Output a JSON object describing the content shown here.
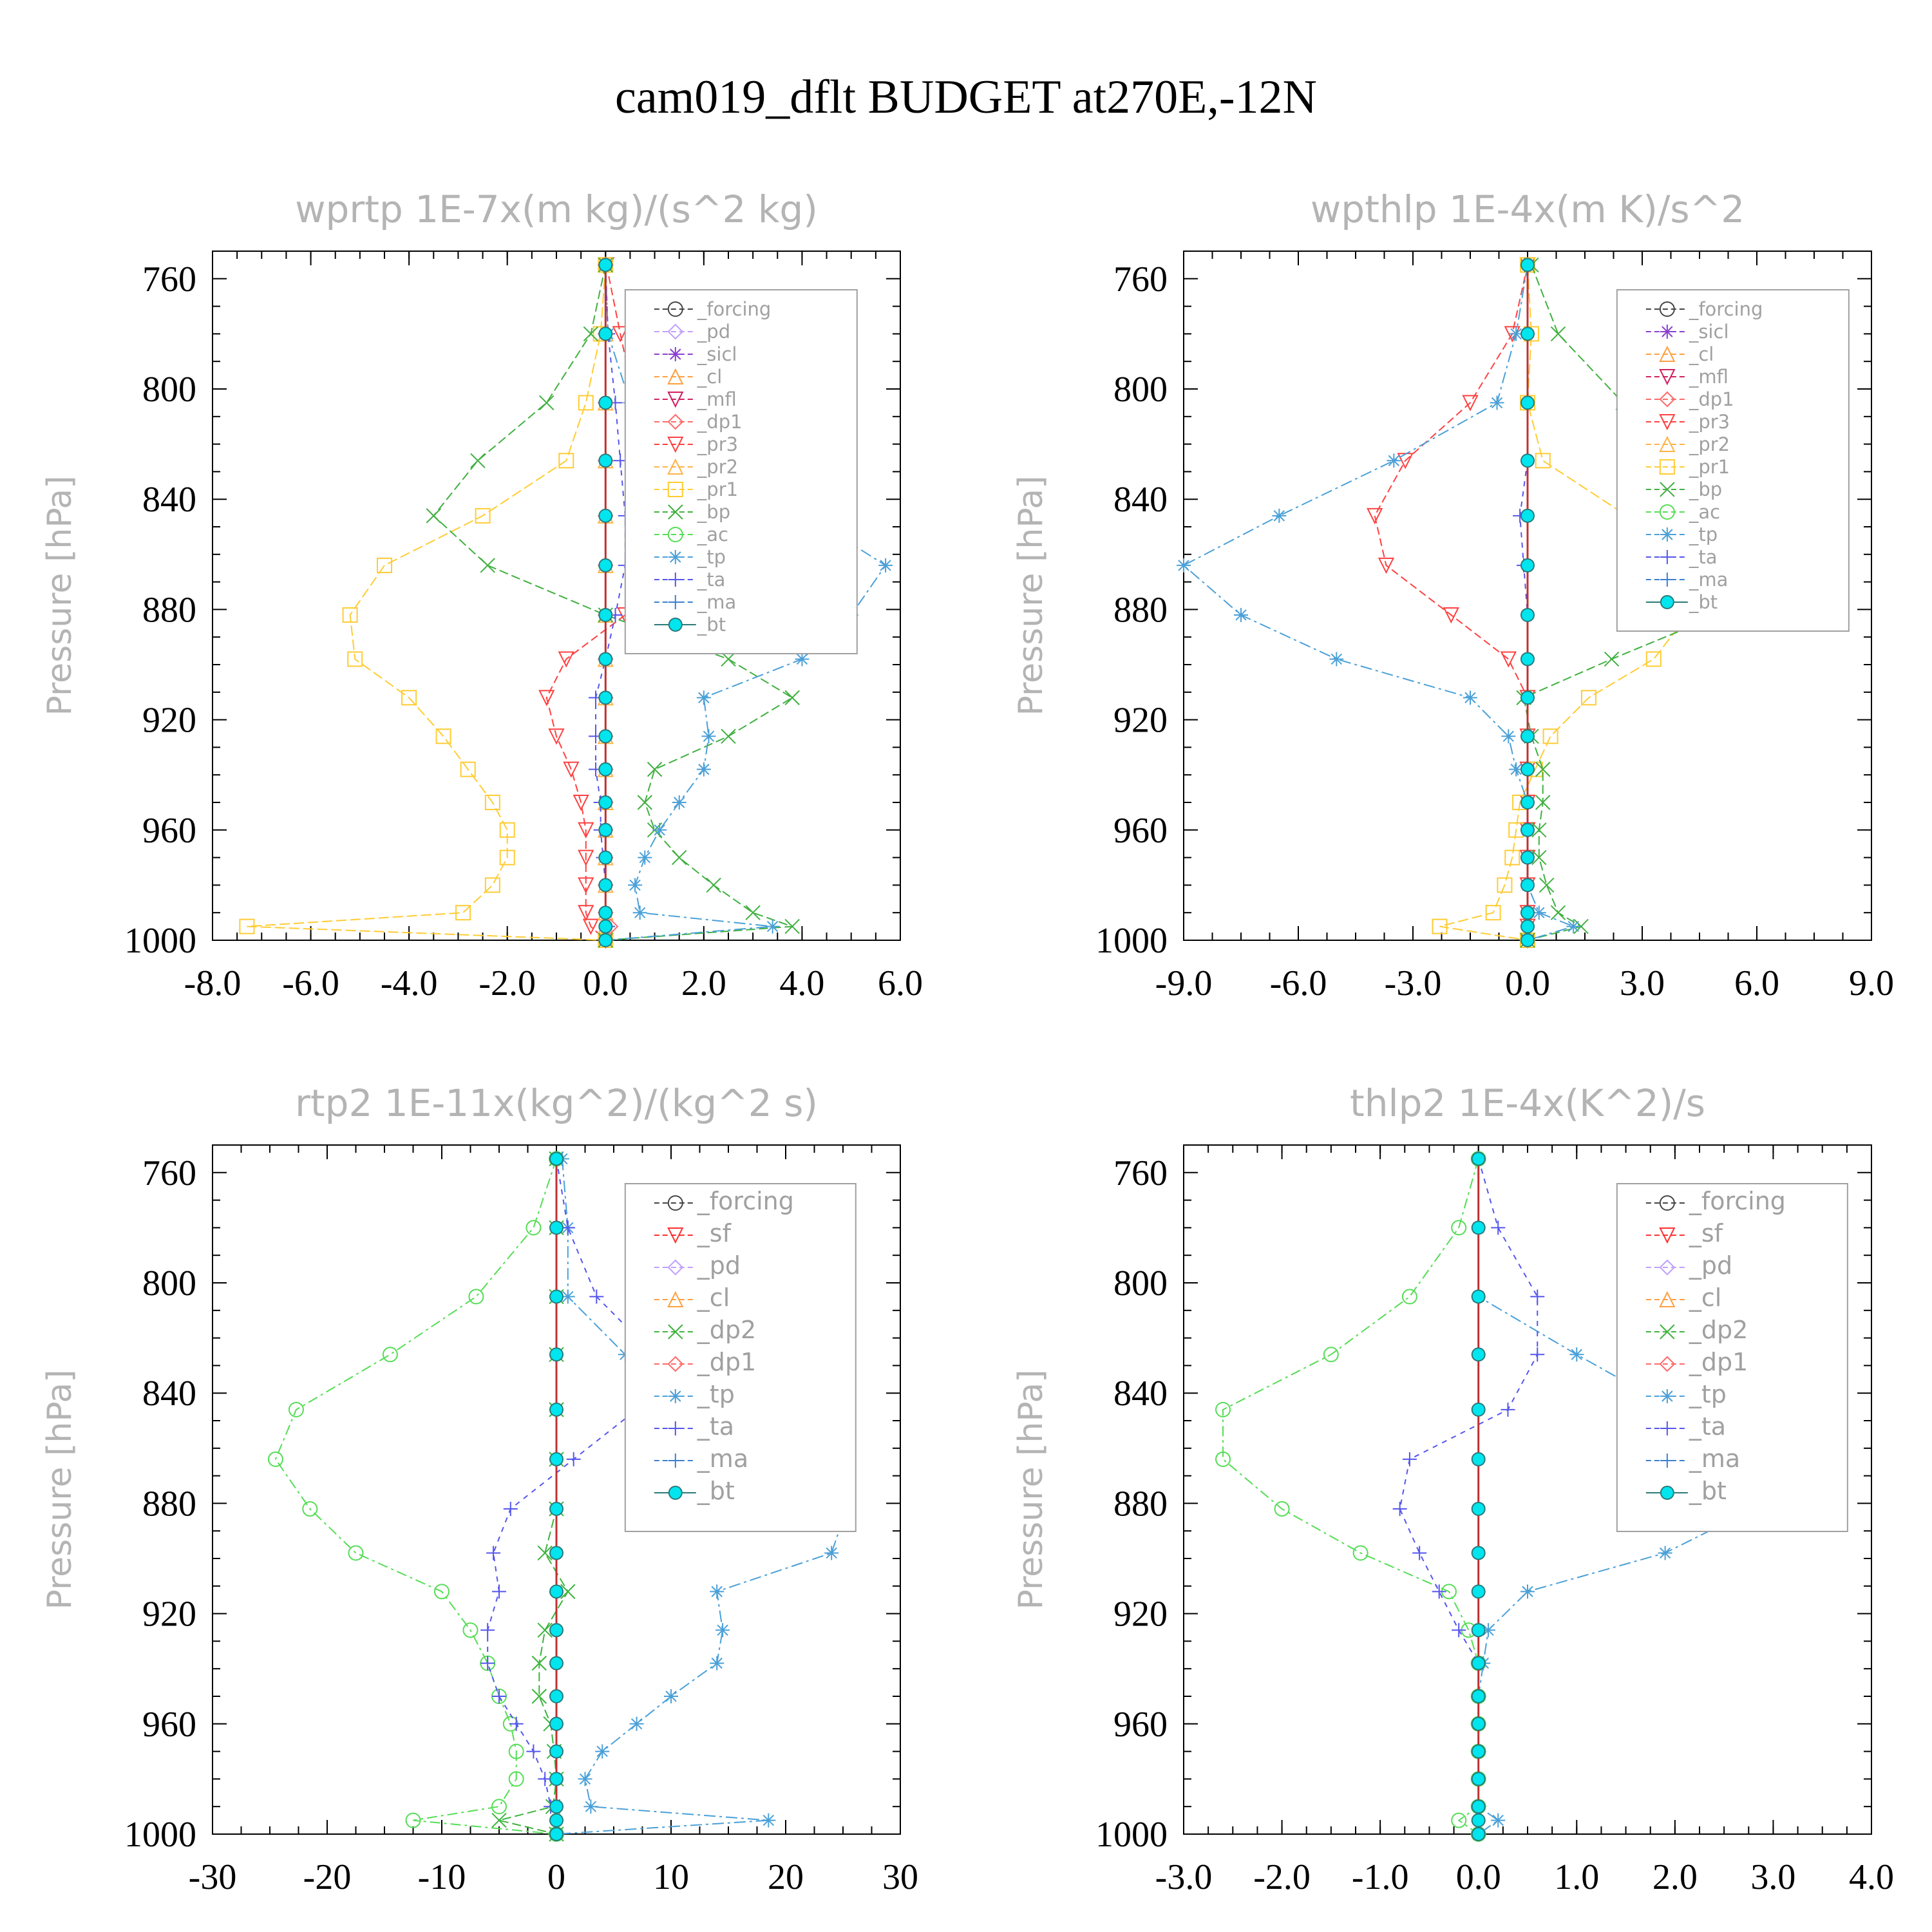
{
  "title": "cam019_dflt  BUDGET at270E,-12N",
  "colors": {
    "forcing": "#444444",
    "pd": "#c0a0ff",
    "sicl": "#8a3fd0",
    "cl": "#ff9f40",
    "mfl": "#d02060",
    "dp1": "#ff6a6a",
    "dp2": "#3cb43c",
    "pr3": "#ff4040",
    "pr2": "#ffb347",
    "pr1": "#ffcc33",
    "bp": "#40b040",
    "ac": "#55dd55",
    "tp": "#4aa0d8",
    "ta": "#5555ee",
    "ma": "#3a80d0",
    "bt": "#00e5ee",
    "sf": "#ff3030"
  },
  "chart_data": [
    {
      "type": "line",
      "title": "wprtp  1E-7x(m kg)/(s^2 kg)",
      "ylabel": "Pressure [hPa]",
      "ylim": [
        1000,
        750
      ],
      "xlim": [
        -8,
        6
      ],
      "xticks": [
        "-8.0",
        "-6.0",
        "-4.0",
        "-2.0",
        "0.0",
        "2.0",
        "4.0",
        "6.0"
      ],
      "xtick_values": [
        -8,
        -6,
        -4,
        -2,
        0,
        2,
        4,
        6
      ],
      "yticks": [
        "760",
        "800",
        "840",
        "880",
        "920",
        "960",
        "1000"
      ],
      "ytick_values": [
        760,
        800,
        840,
        880,
        920,
        960,
        1000
      ],
      "pressure": [
        755,
        780,
        805,
        826,
        846,
        864,
        882,
        898,
        912,
        926,
        938,
        950,
        960,
        970,
        980,
        990,
        995,
        1000
      ],
      "legend": [
        "_forcing",
        "_pd",
        "_sicl",
        "_cl",
        "_mfl",
        "_dp1",
        "_pr3",
        "_pr2",
        "_pr1",
        "_bp",
        "_ac",
        "_tp",
        "_ta",
        "_ma",
        "_bt"
      ],
      "series": [
        {
          "name": "_pr3",
          "color": "pr3",
          "marker": "tri-down",
          "values": [
            0.02,
            0.3,
            0.6,
            1.3,
            1.9,
            1.2,
            0.4,
            -0.8,
            -1.2,
            -1.0,
            -0.7,
            -0.5,
            -0.4,
            -0.4,
            -0.4,
            -0.4,
            -0.3,
            0.0
          ]
        },
        {
          "name": "_pr2",
          "color": "pr2",
          "marker": "tri-up",
          "values": [
            0.0,
            0.0,
            0.0,
            0.0,
            0.0,
            0.0,
            0.0,
            0.0,
            0.0,
            0.0,
            0.0,
            0.0,
            0.0,
            0.0,
            0.0,
            0.0,
            0.0,
            0.0
          ]
        },
        {
          "name": "_pr1",
          "color": "pr1",
          "marker": "square",
          "values": [
            0.0,
            -0.1,
            -0.4,
            -0.8,
            -2.5,
            -4.5,
            -5.2,
            -5.1,
            -4.0,
            -3.3,
            -2.8,
            -2.3,
            -2.0,
            -2.0,
            -2.3,
            -2.9,
            -7.3,
            0.0
          ]
        },
        {
          "name": "_bp",
          "color": "bp",
          "marker": "x",
          "values": [
            0.0,
            -0.3,
            -1.2,
            -2.6,
            -3.5,
            -2.4,
            0.0,
            2.5,
            3.8,
            2.5,
            1.0,
            0.8,
            1.0,
            1.5,
            2.2,
            3.0,
            3.8,
            0.0
          ]
        },
        {
          "name": "_tp",
          "color": "tp",
          "marker": "star",
          "values": [
            0.0,
            0.05,
            0.5,
            2.0,
            4.1,
            5.7,
            5.0,
            4.0,
            2.0,
            2.1,
            2.0,
            1.5,
            1.1,
            0.8,
            0.6,
            0.7,
            3.4,
            0.0
          ]
        },
        {
          "name": "_ta",
          "color": "ta",
          "marker": "plus",
          "values": [
            0.0,
            0.05,
            0.2,
            0.3,
            0.4,
            0.4,
            0.2,
            0.0,
            -0.2,
            -0.2,
            -0.2,
            -0.1,
            -0.1,
            -0.05,
            0.0,
            0.0,
            0.05,
            0.0
          ]
        },
        {
          "name": "_dp1",
          "color": "dp1",
          "marker": "diamond",
          "values": [
            0.0,
            0.0,
            0.0,
            0.0,
            0.0,
            0.0,
            0.0,
            0.0,
            0.0,
            0.0,
            0.0,
            0.0,
            0.0,
            0.0,
            0.0,
            0.0,
            0.1,
            0.0
          ]
        },
        {
          "name": "_bt",
          "color": "bt",
          "marker": "dot",
          "values": [
            0.0,
            0.0,
            0.0,
            0.0,
            0.0,
            0.0,
            0.0,
            0.0,
            0.0,
            0.0,
            0.0,
            0.0,
            0.0,
            0.0,
            0.0,
            0.0,
            0.0,
            0.0
          ]
        }
      ]
    },
    {
      "type": "line",
      "title": "wpthlp  1E-4x(m K)/s^2",
      "ylabel": "Pressure [hPa]",
      "ylim": [
        1000,
        750
      ],
      "xlim": [
        -9,
        9
      ],
      "xticks": [
        "-9.0",
        "-6.0",
        "-3.0",
        "0.0",
        "3.0",
        "6.0",
        "9.0"
      ],
      "xtick_values": [
        -9,
        -6,
        -3,
        0,
        3,
        6,
        9
      ],
      "yticks": [
        "760",
        "800",
        "840",
        "880",
        "920",
        "960",
        "1000"
      ],
      "ytick_values": [
        760,
        800,
        840,
        880,
        920,
        960,
        1000
      ],
      "pressure": [
        755,
        780,
        805,
        826,
        846,
        864,
        882,
        898,
        912,
        926,
        938,
        950,
        960,
        970,
        980,
        990,
        995,
        1000
      ],
      "legend": [
        "_forcing",
        "_sicl",
        "_cl",
        "_mfl",
        "_dp1",
        "_pr3",
        "_pr2",
        "_pr1",
        "_bp",
        "_ac",
        "_tp",
        "_ta",
        "_ma",
        "_bt"
      ],
      "series": [
        {
          "name": "_pr3",
          "color": "pr3",
          "marker": "tri-down",
          "values": [
            0.0,
            -0.4,
            -1.5,
            -3.2,
            -4.0,
            -3.7,
            -2.0,
            -0.5,
            0.0,
            0.0,
            0.0,
            0.0,
            0.0,
            0.0,
            0.0,
            0.0,
            0.0,
            0.0
          ]
        },
        {
          "name": "_pr1",
          "color": "pr1",
          "marker": "square",
          "values": [
            0.0,
            0.1,
            0.0,
            0.4,
            2.6,
            4.5,
            4.2,
            3.3,
            1.6,
            0.6,
            0.2,
            -0.2,
            -0.3,
            -0.4,
            -0.6,
            -0.9,
            -2.3,
            0.0
          ]
        },
        {
          "name": "_bp",
          "color": "bp",
          "marker": "x",
          "values": [
            0.1,
            0.8,
            2.5,
            6.0,
            8.2,
            7.9,
            5.0,
            2.2,
            -0.1,
            0.1,
            0.4,
            0.4,
            0.3,
            0.3,
            0.5,
            0.8,
            1.4,
            0.0
          ]
        },
        {
          "name": "_tp",
          "color": "tp",
          "marker": "star",
          "values": [
            0.0,
            -0.3,
            -0.8,
            -3.5,
            -6.5,
            -9.0,
            -7.5,
            -5.0,
            -1.5,
            -0.5,
            -0.3,
            0.0,
            0.0,
            0.0,
            0.0,
            0.3,
            1.2,
            0.0
          ]
        },
        {
          "name": "_ta",
          "color": "ta",
          "marker": "plus",
          "values": [
            0.0,
            0.0,
            0.0,
            0.0,
            -0.2,
            -0.1,
            0.0,
            0.0,
            0.0,
            0.0,
            0.0,
            0.0,
            0.0,
            0.0,
            0.0,
            0.0,
            0.0,
            0.0
          ]
        },
        {
          "name": "_bt",
          "color": "bt",
          "marker": "dot",
          "values": [
            0.0,
            0.0,
            0.0,
            0.0,
            0.0,
            0.0,
            0.0,
            0.0,
            0.0,
            0.0,
            0.0,
            0.0,
            0.0,
            0.0,
            0.0,
            0.0,
            0.0,
            0.0
          ]
        }
      ]
    },
    {
      "type": "line",
      "title": "rtp2  1E-11x(kg^2)/(kg^2 s)",
      "ylabel": "Pressure [hPa]",
      "ylim": [
        1000,
        750
      ],
      "xlim": [
        -30,
        30
      ],
      "xticks": [
        "-30",
        "-20",
        "-10",
        "0",
        "10",
        "20",
        "30"
      ],
      "xtick_values": [
        -30,
        -20,
        -10,
        0,
        10,
        20,
        30
      ],
      "yticks": [
        "760",
        "800",
        "840",
        "880",
        "920",
        "960",
        "1000"
      ],
      "ytick_values": [
        760,
        800,
        840,
        880,
        920,
        960,
        1000
      ],
      "pressure": [
        755,
        780,
        805,
        826,
        846,
        864,
        882,
        898,
        912,
        926,
        938,
        950,
        960,
        970,
        980,
        990,
        995,
        1000
      ],
      "legend": [
        "_forcing",
        "_sf",
        "_pd",
        "_cl",
        "_dp2",
        "_dp1",
        "_tp",
        "_ta",
        "_ma",
        "_bt"
      ],
      "series": [
        {
          "name": "_dp1",
          "color": "ac",
          "marker": "circle",
          "values": [
            0.0,
            -2.0,
            -7.0,
            -14.5,
            -22.7,
            -24.5,
            -21.5,
            -17.5,
            -10.0,
            -7.5,
            -6.0,
            -5.0,
            -4.0,
            -3.5,
            -3.5,
            -5.0,
            -12.5,
            0.0
          ]
        },
        {
          "name": "_dp2",
          "color": "dp2",
          "marker": "x",
          "values": [
            0.0,
            0.0,
            0.0,
            0.0,
            0.0,
            0.0,
            0.0,
            -1.0,
            1.0,
            -1.0,
            -1.5,
            -1.5,
            -0.5,
            -0.2,
            0.0,
            -0.3,
            -5.0,
            0.0
          ]
        },
        {
          "name": "_tp",
          "color": "tp",
          "marker": "star",
          "values": [
            0.5,
            1.0,
            1.0,
            6.0,
            15.5,
            25.3,
            25.3,
            24.0,
            14.0,
            14.5,
            14.0,
            10.0,
            7.0,
            4.0,
            2.5,
            3.0,
            18.5,
            0.0
          ]
        },
        {
          "name": "_ta",
          "color": "ta",
          "marker": "plus",
          "values": [
            0.0,
            1.0,
            3.5,
            8.5,
            7.0,
            1.5,
            -4.0,
            -5.5,
            -5.0,
            -6.0,
            -6.0,
            -5.0,
            -3.5,
            -2.0,
            -1.0,
            -0.5,
            0.0,
            0.0
          ]
        },
        {
          "name": "_bt",
          "color": "bt",
          "marker": "dot",
          "values": [
            0.0,
            0.0,
            0.0,
            0.0,
            0.0,
            0.0,
            0.0,
            0.0,
            0.0,
            0.0,
            0.0,
            0.0,
            0.0,
            0.0,
            0.0,
            0.0,
            0.0,
            0.0
          ]
        }
      ]
    },
    {
      "type": "line",
      "title": "thlp2  1E-4x(K^2)/s",
      "ylabel": "Pressure [hPa]",
      "ylim": [
        1000,
        750
      ],
      "xlim": [
        -3,
        4
      ],
      "xticks": [
        "-3.0",
        "-2.0",
        "-1.0",
        "0.0",
        "1.0",
        "2.0",
        "3.0",
        "4.0"
      ],
      "xtick_values": [
        -3,
        -2,
        -1,
        0,
        1,
        2,
        3,
        4
      ],
      "yticks": [
        "760",
        "800",
        "840",
        "880",
        "920",
        "960",
        "1000"
      ],
      "ytick_values": [
        760,
        800,
        840,
        880,
        920,
        960,
        1000
      ],
      "pressure": [
        755,
        780,
        805,
        826,
        846,
        864,
        882,
        898,
        912,
        926,
        938,
        950,
        960,
        970,
        980,
        990,
        995,
        1000
      ],
      "legend": [
        "_forcing",
        "_sf",
        "_pd",
        "_cl",
        "_dp2",
        "_dp1",
        "_tp",
        "_ta",
        "_ma",
        "_bt"
      ],
      "series": [
        {
          "name": "_dp1",
          "color": "ac",
          "marker": "circle",
          "values": [
            0.0,
            -0.2,
            -0.7,
            -1.5,
            -2.6,
            -2.6,
            -2.0,
            -1.2,
            -0.3,
            -0.1,
            0.0,
            0.0,
            0.0,
            0.0,
            0.0,
            0.0,
            -0.2,
            0.0
          ]
        },
        {
          "name": "_tp",
          "color": "tp",
          "marker": "star",
          "values": [
            0.0,
            0.0,
            0.0,
            1.0,
            2.0,
            3.4,
            2.8,
            1.9,
            0.5,
            0.1,
            0.05,
            0.0,
            0.0,
            0.0,
            0.0,
            0.0,
            0.2,
            0.0
          ]
        },
        {
          "name": "_ta",
          "color": "ta",
          "marker": "plus",
          "values": [
            0.0,
            0.2,
            0.6,
            0.6,
            0.3,
            -0.7,
            -0.8,
            -0.6,
            -0.4,
            -0.2,
            0.0,
            0.0,
            0.0,
            0.0,
            0.0,
            0.0,
            0.0,
            0.0
          ]
        },
        {
          "name": "_bt",
          "color": "bt",
          "marker": "dot",
          "values": [
            0.0,
            0.0,
            0.0,
            0.0,
            0.0,
            0.0,
            0.0,
            0.0,
            0.0,
            0.0,
            0.0,
            0.0,
            0.0,
            0.0,
            0.0,
            0.0,
            0.0,
            0.0
          ]
        }
      ]
    }
  ]
}
